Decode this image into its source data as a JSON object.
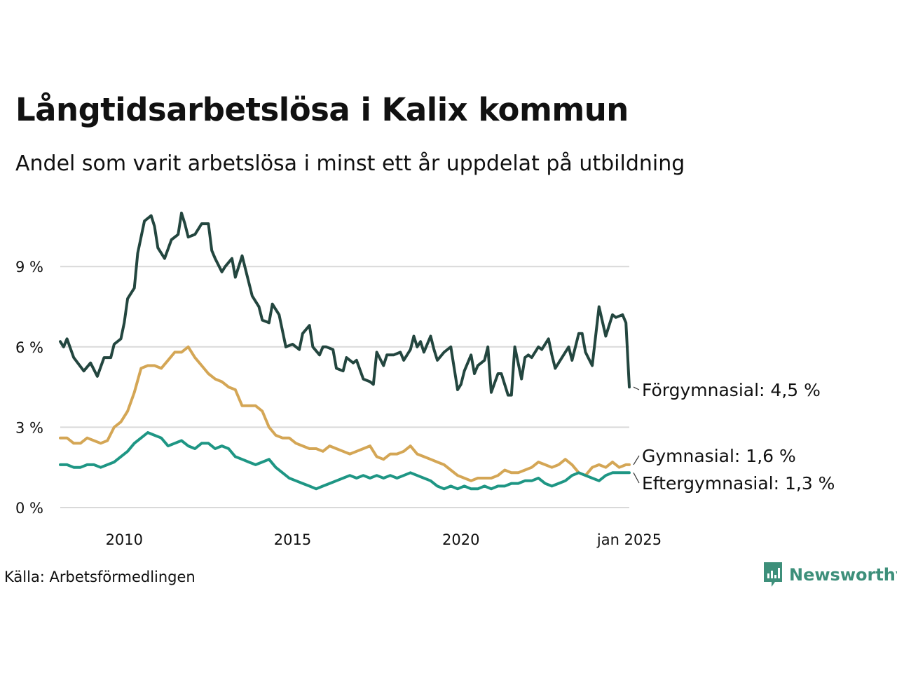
{
  "title": "Långtidsarbetslösa i Kalix kommun",
  "subtitle": "Andel som varit arbetslösa i minst ett år uppdelat på utbildning",
  "source": "Källa: Arbetsförmedlingen",
  "brand": {
    "name": "Newsworthy",
    "color": "#3d8f7a"
  },
  "chart_data": {
    "type": "line",
    "title": "Långtidsarbetslösa i Kalix kommun",
    "xlabel": "",
    "ylabel": "",
    "xlim": [
      2008.1,
      2025.0
    ],
    "ylim": [
      0,
      11.5
    ],
    "grid": true,
    "x_ticks": [
      {
        "value": 2010,
        "label": "2010"
      },
      {
        "value": 2015,
        "label": "2015"
      },
      {
        "value": 2020,
        "label": "2020"
      },
      {
        "value": 2025,
        "label": "jan 2025"
      }
    ],
    "y_ticks": [
      {
        "value": 0,
        "label": "0 %"
      },
      {
        "value": 3,
        "label": "3 %"
      },
      {
        "value": 6,
        "label": "6 %"
      },
      {
        "value": 9,
        "label": "9 %"
      }
    ],
    "series": [
      {
        "name": "Förgymnasial",
        "label": "Förgymnasial: 4,5 %",
        "color": "#23463f",
        "points": [
          [
            2008.1,
            6.2
          ],
          [
            2008.2,
            6.0
          ],
          [
            2008.3,
            6.3
          ],
          [
            2008.5,
            5.6
          ],
          [
            2008.8,
            5.1
          ],
          [
            2009.0,
            5.4
          ],
          [
            2009.2,
            4.9
          ],
          [
            2009.4,
            5.6
          ],
          [
            2009.6,
            5.6
          ],
          [
            2009.7,
            6.1
          ],
          [
            2009.9,
            6.3
          ],
          [
            2010.0,
            6.9
          ],
          [
            2010.1,
            7.8
          ],
          [
            2010.3,
            8.2
          ],
          [
            2010.4,
            9.5
          ],
          [
            2010.6,
            10.7
          ],
          [
            2010.8,
            10.9
          ],
          [
            2010.9,
            10.5
          ],
          [
            2011.0,
            9.7
          ],
          [
            2011.2,
            9.3
          ],
          [
            2011.4,
            10.0
          ],
          [
            2011.6,
            10.2
          ],
          [
            2011.7,
            11.0
          ],
          [
            2011.8,
            10.6
          ],
          [
            2011.9,
            10.1
          ],
          [
            2012.1,
            10.2
          ],
          [
            2012.3,
            10.6
          ],
          [
            2012.5,
            10.6
          ],
          [
            2012.6,
            9.6
          ],
          [
            2012.7,
            9.3
          ],
          [
            2012.9,
            8.8
          ],
          [
            2013.0,
            9.0
          ],
          [
            2013.2,
            9.3
          ],
          [
            2013.3,
            8.6
          ],
          [
            2013.5,
            9.4
          ],
          [
            2013.6,
            8.9
          ],
          [
            2013.8,
            7.9
          ],
          [
            2014.0,
            7.5
          ],
          [
            2014.1,
            7.0
          ],
          [
            2014.3,
            6.9
          ],
          [
            2014.4,
            7.6
          ],
          [
            2014.6,
            7.2
          ],
          [
            2014.8,
            6.0
          ],
          [
            2015.0,
            6.1
          ],
          [
            2015.2,
            5.9
          ],
          [
            2015.3,
            6.5
          ],
          [
            2015.5,
            6.8
          ],
          [
            2015.6,
            6.0
          ],
          [
            2015.8,
            5.7
          ],
          [
            2015.9,
            6.0
          ],
          [
            2016.0,
            6.0
          ],
          [
            2016.2,
            5.9
          ],
          [
            2016.3,
            5.2
          ],
          [
            2016.5,
            5.1
          ],
          [
            2016.6,
            5.6
          ],
          [
            2016.8,
            5.4
          ],
          [
            2016.9,
            5.5
          ],
          [
            2017.1,
            4.8
          ],
          [
            2017.3,
            4.7
          ],
          [
            2017.4,
            4.6
          ],
          [
            2017.5,
            5.8
          ],
          [
            2017.7,
            5.3
          ],
          [
            2017.8,
            5.7
          ],
          [
            2018.0,
            5.7
          ],
          [
            2018.2,
            5.8
          ],
          [
            2018.3,
            5.5
          ],
          [
            2018.5,
            5.9
          ],
          [
            2018.6,
            6.4
          ],
          [
            2018.7,
            6.0
          ],
          [
            2018.8,
            6.2
          ],
          [
            2018.9,
            5.8
          ],
          [
            2019.1,
            6.4
          ],
          [
            2019.2,
            5.9
          ],
          [
            2019.3,
            5.5
          ],
          [
            2019.5,
            5.8
          ],
          [
            2019.6,
            5.9
          ],
          [
            2019.7,
            6.0
          ],
          [
            2019.9,
            4.4
          ],
          [
            2020.0,
            4.6
          ],
          [
            2020.1,
            5.1
          ],
          [
            2020.3,
            5.7
          ],
          [
            2020.4,
            5.0
          ],
          [
            2020.5,
            5.3
          ],
          [
            2020.7,
            5.5
          ],
          [
            2020.8,
            6.0
          ],
          [
            2020.9,
            4.3
          ],
          [
            2021.1,
            5.0
          ],
          [
            2021.2,
            5.0
          ],
          [
            2021.4,
            4.2
          ],
          [
            2021.5,
            4.2
          ],
          [
            2021.6,
            6.0
          ],
          [
            2021.8,
            4.8
          ],
          [
            2021.9,
            5.6
          ],
          [
            2022.0,
            5.7
          ],
          [
            2022.1,
            5.6
          ],
          [
            2022.3,
            6.0
          ],
          [
            2022.4,
            5.9
          ],
          [
            2022.6,
            6.3
          ],
          [
            2022.7,
            5.7
          ],
          [
            2022.8,
            5.2
          ],
          [
            2023.0,
            5.6
          ],
          [
            2023.2,
            6.0
          ],
          [
            2023.3,
            5.5
          ],
          [
            2023.5,
            6.5
          ],
          [
            2023.6,
            6.5
          ],
          [
            2023.7,
            5.8
          ],
          [
            2023.9,
            5.3
          ],
          [
            2024.1,
            7.5
          ],
          [
            2024.3,
            6.4
          ],
          [
            2024.5,
            7.2
          ],
          [
            2024.6,
            7.1
          ],
          [
            2024.8,
            7.2
          ],
          [
            2024.9,
            6.9
          ],
          [
            2025.0,
            4.5
          ]
        ]
      },
      {
        "name": "Gymnasial",
        "label": "Gymnasial: 1,6 %",
        "color": "#d4a655",
        "points": [
          [
            2008.1,
            2.6
          ],
          [
            2008.3,
            2.6
          ],
          [
            2008.5,
            2.4
          ],
          [
            2008.7,
            2.4
          ],
          [
            2008.9,
            2.6
          ],
          [
            2009.1,
            2.5
          ],
          [
            2009.3,
            2.4
          ],
          [
            2009.5,
            2.5
          ],
          [
            2009.7,
            3.0
          ],
          [
            2009.9,
            3.2
          ],
          [
            2010.1,
            3.6
          ],
          [
            2010.3,
            4.3
          ],
          [
            2010.5,
            5.2
          ],
          [
            2010.7,
            5.3
          ],
          [
            2010.9,
            5.3
          ],
          [
            2011.1,
            5.2
          ],
          [
            2011.3,
            5.5
          ],
          [
            2011.5,
            5.8
          ],
          [
            2011.7,
            5.8
          ],
          [
            2011.9,
            6.0
          ],
          [
            2012.1,
            5.6
          ],
          [
            2012.3,
            5.3
          ],
          [
            2012.5,
            5.0
          ],
          [
            2012.7,
            4.8
          ],
          [
            2012.9,
            4.7
          ],
          [
            2013.1,
            4.5
          ],
          [
            2013.3,
            4.4
          ],
          [
            2013.5,
            3.8
          ],
          [
            2013.7,
            3.8
          ],
          [
            2013.9,
            3.8
          ],
          [
            2014.1,
            3.6
          ],
          [
            2014.3,
            3.0
          ],
          [
            2014.5,
            2.7
          ],
          [
            2014.7,
            2.6
          ],
          [
            2014.9,
            2.6
          ],
          [
            2015.1,
            2.4
          ],
          [
            2015.3,
            2.3
          ],
          [
            2015.5,
            2.2
          ],
          [
            2015.7,
            2.2
          ],
          [
            2015.9,
            2.1
          ],
          [
            2016.1,
            2.3
          ],
          [
            2016.3,
            2.2
          ],
          [
            2016.5,
            2.1
          ],
          [
            2016.7,
            2.0
          ],
          [
            2016.9,
            2.1
          ],
          [
            2017.1,
            2.2
          ],
          [
            2017.3,
            2.3
          ],
          [
            2017.5,
            1.9
          ],
          [
            2017.7,
            1.8
          ],
          [
            2017.9,
            2.0
          ],
          [
            2018.1,
            2.0
          ],
          [
            2018.3,
            2.1
          ],
          [
            2018.5,
            2.3
          ],
          [
            2018.7,
            2.0
          ],
          [
            2018.9,
            1.9
          ],
          [
            2019.1,
            1.8
          ],
          [
            2019.3,
            1.7
          ],
          [
            2019.5,
            1.6
          ],
          [
            2019.7,
            1.4
          ],
          [
            2019.9,
            1.2
          ],
          [
            2020.1,
            1.1
          ],
          [
            2020.3,
            1.0
          ],
          [
            2020.5,
            1.1
          ],
          [
            2020.7,
            1.1
          ],
          [
            2020.9,
            1.1
          ],
          [
            2021.1,
            1.2
          ],
          [
            2021.3,
            1.4
          ],
          [
            2021.5,
            1.3
          ],
          [
            2021.7,
            1.3
          ],
          [
            2021.9,
            1.4
          ],
          [
            2022.1,
            1.5
          ],
          [
            2022.3,
            1.7
          ],
          [
            2022.5,
            1.6
          ],
          [
            2022.7,
            1.5
          ],
          [
            2022.9,
            1.6
          ],
          [
            2023.1,
            1.8
          ],
          [
            2023.3,
            1.6
          ],
          [
            2023.5,
            1.3
          ],
          [
            2023.7,
            1.2
          ],
          [
            2023.9,
            1.5
          ],
          [
            2024.1,
            1.6
          ],
          [
            2024.3,
            1.5
          ],
          [
            2024.5,
            1.7
          ],
          [
            2024.7,
            1.5
          ],
          [
            2024.9,
            1.6
          ],
          [
            2025.0,
            1.6
          ]
        ]
      },
      {
        "name": "Eftergymnasial",
        "label": "Eftergymnasial: 1,3 %",
        "color": "#1e9684",
        "points": [
          [
            2008.1,
            1.6
          ],
          [
            2008.3,
            1.6
          ],
          [
            2008.5,
            1.5
          ],
          [
            2008.7,
            1.5
          ],
          [
            2008.9,
            1.6
          ],
          [
            2009.1,
            1.6
          ],
          [
            2009.3,
            1.5
          ],
          [
            2009.5,
            1.6
          ],
          [
            2009.7,
            1.7
          ],
          [
            2009.9,
            1.9
          ],
          [
            2010.1,
            2.1
          ],
          [
            2010.3,
            2.4
          ],
          [
            2010.5,
            2.6
          ],
          [
            2010.7,
            2.8
          ],
          [
            2010.9,
            2.7
          ],
          [
            2011.1,
            2.6
          ],
          [
            2011.3,
            2.3
          ],
          [
            2011.5,
            2.4
          ],
          [
            2011.7,
            2.5
          ],
          [
            2011.9,
            2.3
          ],
          [
            2012.1,
            2.2
          ],
          [
            2012.3,
            2.4
          ],
          [
            2012.5,
            2.4
          ],
          [
            2012.7,
            2.2
          ],
          [
            2012.9,
            2.3
          ],
          [
            2013.1,
            2.2
          ],
          [
            2013.3,
            1.9
          ],
          [
            2013.5,
            1.8
          ],
          [
            2013.7,
            1.7
          ],
          [
            2013.9,
            1.6
          ],
          [
            2014.1,
            1.7
          ],
          [
            2014.3,
            1.8
          ],
          [
            2014.5,
            1.5
          ],
          [
            2014.7,
            1.3
          ],
          [
            2014.9,
            1.1
          ],
          [
            2015.1,
            1.0
          ],
          [
            2015.3,
            0.9
          ],
          [
            2015.5,
            0.8
          ],
          [
            2015.7,
            0.7
          ],
          [
            2015.9,
            0.8
          ],
          [
            2016.1,
            0.9
          ],
          [
            2016.3,
            1.0
          ],
          [
            2016.5,
            1.1
          ],
          [
            2016.7,
            1.2
          ],
          [
            2016.9,
            1.1
          ],
          [
            2017.1,
            1.2
          ],
          [
            2017.3,
            1.1
          ],
          [
            2017.5,
            1.2
          ],
          [
            2017.7,
            1.1
          ],
          [
            2017.9,
            1.2
          ],
          [
            2018.1,
            1.1
          ],
          [
            2018.3,
            1.2
          ],
          [
            2018.5,
            1.3
          ],
          [
            2018.7,
            1.2
          ],
          [
            2018.9,
            1.1
          ],
          [
            2019.1,
            1.0
          ],
          [
            2019.3,
            0.8
          ],
          [
            2019.5,
            0.7
          ],
          [
            2019.7,
            0.8
          ],
          [
            2019.9,
            0.7
          ],
          [
            2020.1,
            0.8
          ],
          [
            2020.3,
            0.7
          ],
          [
            2020.5,
            0.7
          ],
          [
            2020.7,
            0.8
          ],
          [
            2020.9,
            0.7
          ],
          [
            2021.1,
            0.8
          ],
          [
            2021.3,
            0.8
          ],
          [
            2021.5,
            0.9
          ],
          [
            2021.7,
            0.9
          ],
          [
            2021.9,
            1.0
          ],
          [
            2022.1,
            1.0
          ],
          [
            2022.3,
            1.1
          ],
          [
            2022.5,
            0.9
          ],
          [
            2022.7,
            0.8
          ],
          [
            2022.9,
            0.9
          ],
          [
            2023.1,
            1.0
          ],
          [
            2023.3,
            1.2
          ],
          [
            2023.5,
            1.3
          ],
          [
            2023.7,
            1.2
          ],
          [
            2023.9,
            1.1
          ],
          [
            2024.1,
            1.0
          ],
          [
            2024.3,
            1.2
          ],
          [
            2024.5,
            1.3
          ],
          [
            2024.7,
            1.3
          ],
          [
            2024.9,
            1.3
          ],
          [
            2025.0,
            1.3
          ]
        ]
      }
    ]
  }
}
